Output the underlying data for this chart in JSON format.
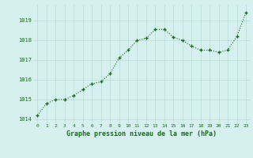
{
  "x": [
    0,
    1,
    2,
    3,
    4,
    5,
    6,
    7,
    8,
    9,
    10,
    11,
    12,
    13,
    14,
    15,
    16,
    17,
    18,
    19,
    20,
    21,
    22,
    23
  ],
  "y": [
    1014.2,
    1014.8,
    1015.0,
    1015.0,
    1015.2,
    1015.5,
    1015.8,
    1015.9,
    1016.3,
    1017.1,
    1017.5,
    1018.0,
    1018.1,
    1018.55,
    1018.55,
    1018.15,
    1018.0,
    1017.7,
    1017.5,
    1017.5,
    1017.4,
    1017.5,
    1018.2,
    1019.4
  ],
  "line_color": "#1a6b1a",
  "marker_color": "#1a6b1a",
  "bg_color": "#d6f0f0",
  "grid_color": "#b8d8d8",
  "xlabel": "Graphe pression niveau de la mer (hPa)",
  "xlabel_color": "#1a6b1a",
  "tick_color": "#1a6b1a",
  "ylim": [
    1013.8,
    1019.8
  ],
  "yticks": [
    1014,
    1015,
    1016,
    1017,
    1018,
    1019
  ],
  "xticks": [
    0,
    1,
    2,
    3,
    4,
    5,
    6,
    7,
    8,
    9,
    10,
    11,
    12,
    13,
    14,
    15,
    16,
    17,
    18,
    19,
    20,
    21,
    22,
    23
  ]
}
